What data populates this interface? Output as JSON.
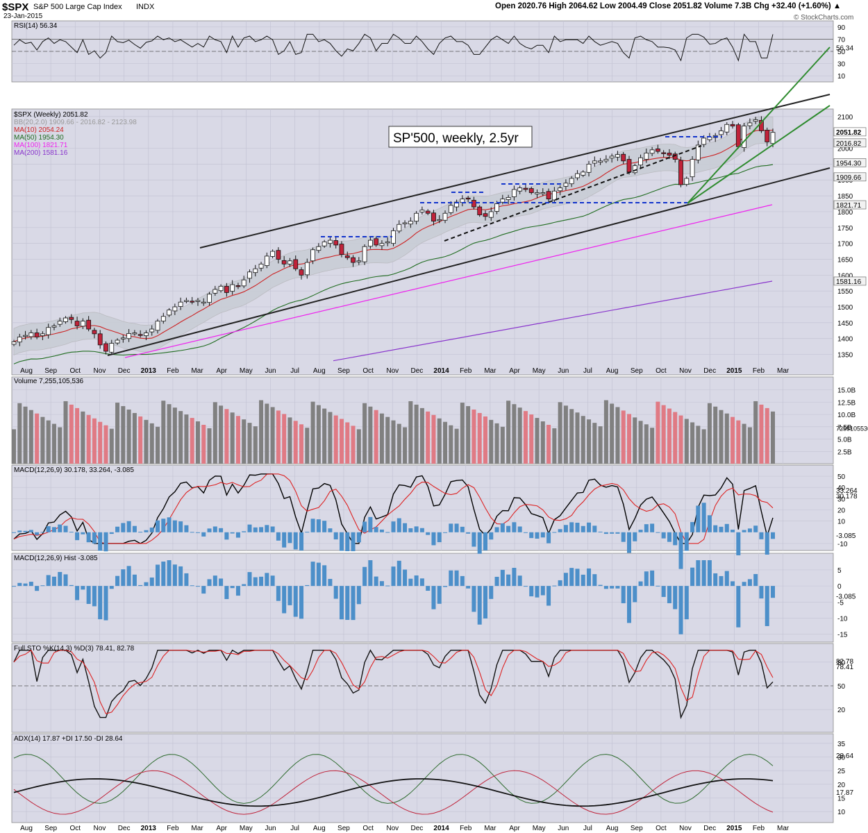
{
  "header": {
    "symbol": "$SPX",
    "name": "S&P 500 Large Cap Index",
    "exchange": "INDX",
    "date": "23-Jan-2015",
    "credit": "© StockCharts.com",
    "ohlc": "Open 2020.76  High 2064.62  Low 2004.49  Close 2051.82  Volume 7.3B  Chg +32.40 (+1.60%) ▲"
  },
  "colors": {
    "panel_bg": "#d9d9e6",
    "grid": "#c4c4d4",
    "up": "#ffffff",
    "down": "#c0233a",
    "ma10": "#cc2222",
    "ma50": "#1e6b1e",
    "ma100": "#ee22ee",
    "ma200": "#8833cc",
    "bb": "#b8b8bc",
    "channel": "#222222",
    "green_lines": "#2e8b2e",
    "dashed_blue": "#1133cc",
    "vol_up": "#808080",
    "vol_down": "#e07a84",
    "macd_line": "#000000",
    "signal_line": "#dd2222",
    "hist": "#4c8fc9",
    "di_plus": "#2e6b2e",
    "di_minus": "#c0233a"
  },
  "annotation": "SP'500, weekly, 2.5yr",
  "chart_data": {
    "type": "candlestick",
    "title": "$SPX (Weekly) 2051.82",
    "period": "weekly",
    "x_labels": [
      "Aug",
      "Sep",
      "Oct",
      "Nov",
      "Dec",
      "2013",
      "Feb",
      "Mar",
      "Apr",
      "May",
      "Jun",
      "Jul",
      "Aug",
      "Sep",
      "Oct",
      "Nov",
      "Dec",
      "2014",
      "Feb",
      "Mar",
      "Apr",
      "May",
      "Jun",
      "Jul",
      "Aug",
      "Sep",
      "Oct",
      "Nov",
      "Dec",
      "2015",
      "Feb",
      "Mar"
    ],
    "price_ticks": [
      "2100",
      "2000",
      "1950",
      "1900",
      "1850",
      "1800",
      "1750",
      "1700",
      "1650",
      "1600",
      "1550",
      "1500",
      "1450",
      "1400",
      "1350"
    ],
    "price_range": [
      1325,
      2115
    ],
    "legend": [
      {
        "label": "$SPX (Weekly) 2051.82",
        "color": "#000000"
      },
      {
        "label": "BB(20,2.0) 1909.66 - 2016.82 - 2123.98",
        "color": "#999999"
      },
      {
        "label": "MA(10) 2054.24",
        "color": "#cc2222"
      },
      {
        "label": "MA(50) 1954.30",
        "color": "#1e6b1e"
      },
      {
        "label": "MA(100) 1821.71",
        "color": "#ee22ee"
      },
      {
        "label": "MA(200) 1581.16",
        "color": "#8833cc"
      }
    ],
    "price_tags": [
      {
        "value": 2051.82,
        "label": "2051.82"
      },
      {
        "value": 2016.82,
        "label": "2016.82"
      },
      {
        "value": 1954.3,
        "label": "1954.30"
      },
      {
        "value": 1909.66,
        "label": "1909.66"
      },
      {
        "value": 1821.71,
        "label": "1821.71"
      },
      {
        "value": 1581.16,
        "label": "1581.16"
      }
    ],
    "week_closes": [
      1390,
      1405,
      1410,
      1418,
      1405,
      1415,
      1435,
      1440,
      1455,
      1465,
      1460,
      1440,
      1455,
      1430,
      1415,
      1380,
      1360,
      1385,
      1395,
      1402,
      1416,
      1418,
      1410,
      1418,
      1430,
      1455,
      1470,
      1490,
      1500,
      1515,
      1520,
      1515,
      1520,
      1515,
      1540,
      1555,
      1565,
      1545,
      1570,
      1565,
      1585,
      1610,
      1620,
      1635,
      1660,
      1675,
      1650,
      1635,
      1645,
      1620,
      1600,
      1640,
      1680,
      1690,
      1705,
      1710,
      1695,
      1665,
      1655,
      1640,
      1645,
      1690,
      1710,
      1695,
      1700,
      1705,
      1740,
      1760,
      1765,
      1770,
      1795,
      1805,
      1795,
      1770,
      1775,
      1795,
      1820,
      1830,
      1840,
      1840,
      1815,
      1790,
      1785,
      1800,
      1825,
      1840,
      1845,
      1870,
      1875,
      1870,
      1860,
      1860,
      1860,
      1840,
      1865,
      1875,
      1890,
      1905,
      1920,
      1925,
      1950,
      1960,
      1960,
      1965,
      1975,
      1980,
      1960,
      1925,
      1945,
      1970,
      1985,
      1995,
      1990,
      1985,
      1978,
      1965,
      1885,
      1905,
      1965,
      2010,
      2032,
      2035,
      2040,
      2055,
      2075,
      2070,
      2005,
      2070,
      2080,
      2090,
      2055,
      2020,
      2050
    ],
    "volume": {
      "label": "Volume 7,255,105,536",
      "ticks": [
        "15.0B",
        "12.5B",
        "10.0B",
        "7.5B",
        "5.0B",
        "2.5B"
      ],
      "last_label": "7255105536",
      "max": 16.5
    },
    "rsi": {
      "label": "RSI(14) 56.34",
      "ticks": [
        "90",
        "70",
        "50",
        "30",
        "10"
      ],
      "last": "56.34"
    },
    "macd": {
      "label": "MACD(12,26,9) 30.178, 33.264, -3.085",
      "ticks": [
        "50",
        "40",
        "30",
        "20",
        "10",
        "-10"
      ],
      "tags": [
        "33.264",
        "30.178",
        "-3.085"
      ]
    },
    "macd_hist": {
      "label": "MACD(12,26,9) Hist -3.085",
      "ticks": [
        "5",
        "0",
        "-5",
        "-10",
        "-15"
      ],
      "last": "-3.085"
    },
    "sto": {
      "label": "Full STO %K(14,3) %D(3) 78.41, 82.78",
      "ticks": [
        "80",
        "50",
        "20"
      ],
      "tags": [
        "82.78",
        "78.41"
      ]
    },
    "adx": {
      "label": "ADX(14) 17.87 +DI 17.50 -DI 28.64",
      "ticks": [
        "35",
        "30",
        "25",
        "20",
        "15",
        "10"
      ],
      "tags": [
        "28.64",
        "17.87"
      ]
    }
  }
}
